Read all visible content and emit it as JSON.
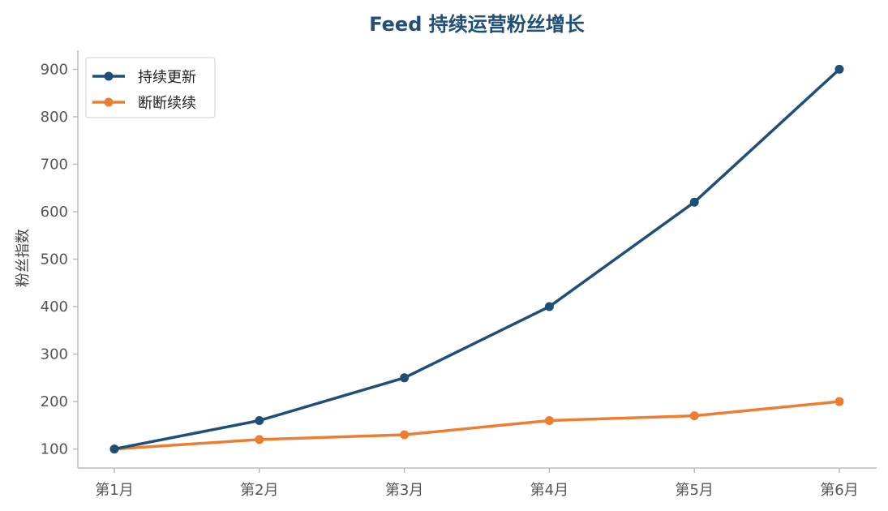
{
  "chart_data": {
    "type": "line",
    "title": "Feed 持续运营粉丝增长",
    "xlabel": "",
    "ylabel": "粉丝指数",
    "categories": [
      "第1月",
      "第2月",
      "第3月",
      "第4月",
      "第5月",
      "第6月"
    ],
    "yticks": [
      100,
      200,
      300,
      400,
      500,
      600,
      700,
      800,
      900
    ],
    "ylim": [
      60,
      940
    ],
    "grid": false,
    "legend_position": "top-left",
    "series": [
      {
        "name": "持续更新",
        "color": "#1f4e79",
        "values": [
          100,
          160,
          250,
          400,
          620,
          900
        ]
      },
      {
        "name": "断断续续",
        "color": "#ed7d31",
        "values": [
          100,
          120,
          130,
          160,
          170,
          200
        ]
      }
    ]
  }
}
